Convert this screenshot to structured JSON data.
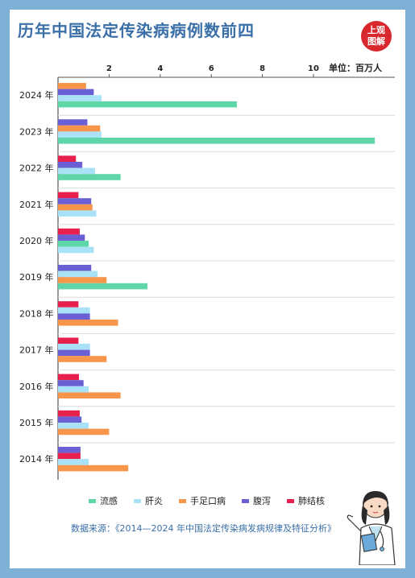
{
  "title": "历年中国法定传染病病例数前四",
  "logo": {
    "line1": "上观",
    "line2": "图解",
    "color": "#d8272d"
  },
  "unit_label": "单位：百万人",
  "source": "数据来源：《2014—2024 年中国法定传染病发病规律及特征分析》",
  "colors": {
    "流感": "#5ed6a8",
    "肝炎": "#a9e1f7",
    "手足口病": "#f7964a",
    "腹泻": "#6b5fd6",
    "肺结核": "#e8204e"
  },
  "chart_data": {
    "type": "bar",
    "orientation": "horizontal",
    "title": "历年中国法定传染病病例数前四",
    "unit": "单位：百万人",
    "xlim": [
      0,
      13
    ],
    "xticks": [
      2,
      4,
      6,
      8,
      10
    ],
    "legend_position": "bottom",
    "categories": [
      "2024 年",
      "2023 年",
      "2022 年",
      "2021 年",
      "2020 年",
      "2019 年",
      "2018 年",
      "2017 年",
      "2016 年",
      "2015 年",
      "2014 年"
    ],
    "legend": [
      "流感",
      "肝炎",
      "手足口病",
      "腹泻",
      "肺结核"
    ],
    "groups": [
      {
        "year": "2024 年",
        "bars": [
          {
            "series": "手足口病",
            "value": 1.1
          },
          {
            "series": "腹泻",
            "value": 1.4
          },
          {
            "series": "肝炎",
            "value": 1.7
          },
          {
            "series": "流感",
            "value": 7.0
          }
        ]
      },
      {
        "year": "2023 年",
        "bars": [
          {
            "series": "腹泻",
            "value": 1.15
          },
          {
            "series": "手足口病",
            "value": 1.65
          },
          {
            "series": "肝炎",
            "value": 1.7
          },
          {
            "series": "流感",
            "value": 12.4
          }
        ]
      },
      {
        "year": "2022 年",
        "bars": [
          {
            "series": "肺结核",
            "value": 0.7
          },
          {
            "series": "腹泻",
            "value": 0.95
          },
          {
            "series": "肝炎",
            "value": 1.45
          },
          {
            "series": "流感",
            "value": 2.45
          }
        ]
      },
      {
        "year": "2021 年",
        "bars": [
          {
            "series": "肺结核",
            "value": 0.8
          },
          {
            "series": "腹泻",
            "value": 1.3
          },
          {
            "series": "手足口病",
            "value": 1.35
          },
          {
            "series": "肝炎",
            "value": 1.5
          }
        ]
      },
      {
        "year": "2020 年",
        "bars": [
          {
            "series": "肺结核",
            "value": 0.85
          },
          {
            "series": "腹泻",
            "value": 1.05
          },
          {
            "series": "流感",
            "value": 1.2
          },
          {
            "series": "肝炎",
            "value": 1.4
          }
        ]
      },
      {
        "year": "2019 年",
        "bars": [
          {
            "series": "腹泻",
            "value": 1.3
          },
          {
            "series": "肝炎",
            "value": 1.55
          },
          {
            "series": "手足口病",
            "value": 1.9
          },
          {
            "series": "流感",
            "value": 3.5
          }
        ]
      },
      {
        "year": "2018 年",
        "bars": [
          {
            "series": "肺结核",
            "value": 0.8
          },
          {
            "series": "肝炎",
            "value": 1.25
          },
          {
            "series": "腹泻",
            "value": 1.25
          },
          {
            "series": "手足口病",
            "value": 2.35
          }
        ]
      },
      {
        "year": "2017 年",
        "bars": [
          {
            "series": "肺结核",
            "value": 0.8
          },
          {
            "series": "肝炎",
            "value": 1.25
          },
          {
            "series": "腹泻",
            "value": 1.25
          },
          {
            "series": "手足口病",
            "value": 1.9
          }
        ]
      },
      {
        "year": "2016 年",
        "bars": [
          {
            "series": "肺结核",
            "value": 0.82
          },
          {
            "series": "腹泻",
            "value": 1.0
          },
          {
            "series": "肝炎",
            "value": 1.2
          },
          {
            "series": "手足口病",
            "value": 2.45
          }
        ]
      },
      {
        "year": "2015 年",
        "bars": [
          {
            "series": "肺结核",
            "value": 0.85
          },
          {
            "series": "腹泻",
            "value": 0.92
          },
          {
            "series": "肝炎",
            "value": 1.2
          },
          {
            "series": "手足口病",
            "value": 2.0
          }
        ]
      },
      {
        "year": "2014 年",
        "bars": [
          {
            "series": "腹泻",
            "value": 0.88
          },
          {
            "series": "肺结核",
            "value": 0.88
          },
          {
            "series": "肝炎",
            "value": 1.2
          },
          {
            "series": "手足口病",
            "value": 2.75
          }
        ]
      }
    ]
  }
}
